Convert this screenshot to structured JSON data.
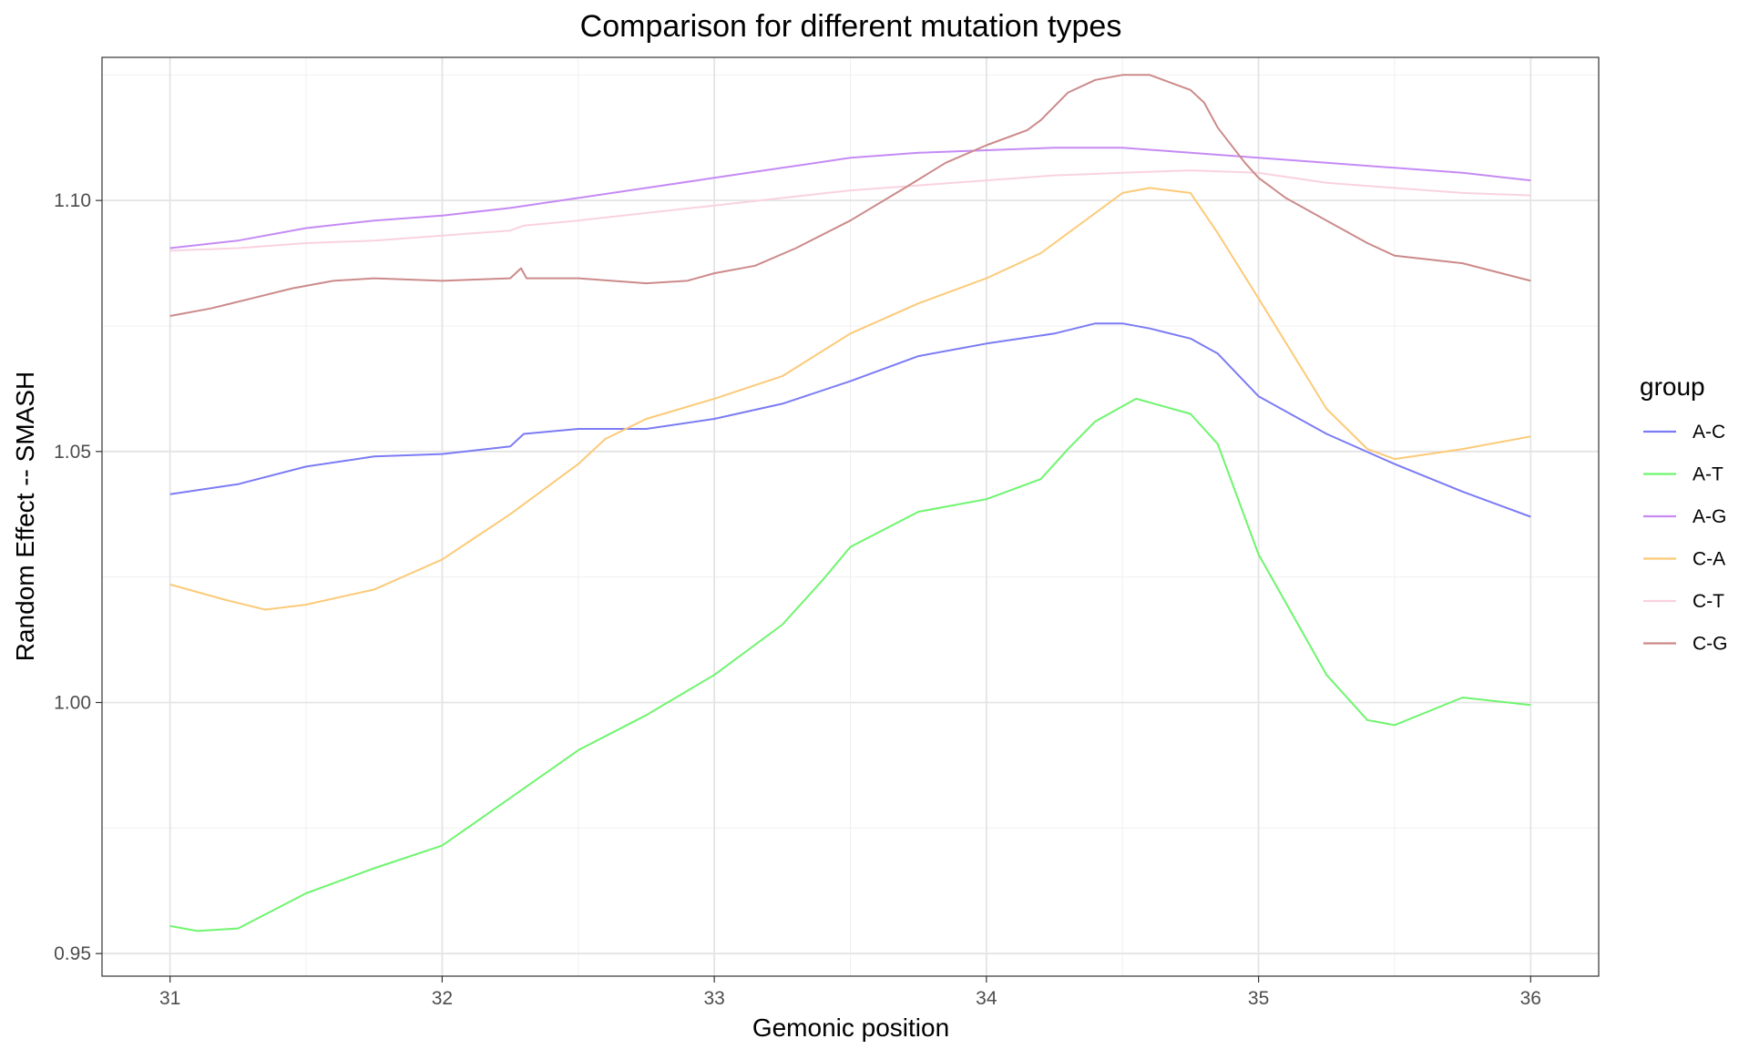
{
  "chart_data": {
    "type": "line",
    "title": "Comparison for different mutation types",
    "xlabel": "Gemonic position",
    "ylabel": "Random Effect -- SMASH",
    "xlim": [
      30.75,
      36.25
    ],
    "ylim": [
      0.9455,
      1.1285
    ],
    "x_ticks": [
      31,
      32,
      33,
      34,
      35,
      36
    ],
    "x_tick_labels": [
      "31",
      "32",
      "33",
      "34",
      "35",
      "36"
    ],
    "y_ticks": [
      0.95,
      1.0,
      1.05,
      1.1
    ],
    "y_tick_labels": [
      "0.95",
      "1.00",
      "1.05",
      "1.10"
    ],
    "grid": true,
    "legend": {
      "title": "group",
      "position": "right"
    },
    "series": [
      {
        "name": "A-C",
        "color": "#7b7bf5",
        "x": [
          31,
          31.25,
          31.5,
          31.75,
          32,
          32.25,
          32.3,
          32.5,
          32.75,
          33,
          33.25,
          33.5,
          33.75,
          34,
          34.25,
          34.4,
          34.5,
          34.6,
          34.75,
          34.85,
          35,
          35.25,
          35.5,
          35.75,
          36
        ],
        "values": [
          1.0415,
          1.0435,
          1.047,
          1.049,
          1.0495,
          1.051,
          1.0535,
          1.0545,
          1.0545,
          1.0565,
          1.0595,
          1.064,
          1.069,
          1.0715,
          1.0735,
          1.0755,
          1.0755,
          1.0745,
          1.0725,
          1.0695,
          1.061,
          1.0535,
          1.0475,
          1.042,
          1.037
        ]
      },
      {
        "name": "A-T",
        "color": "#6ef56e",
        "x": [
          31,
          31.1,
          31.25,
          31.5,
          31.75,
          32,
          32.25,
          32.5,
          32.75,
          33,
          33.25,
          33.4,
          33.5,
          33.75,
          34,
          34.2,
          34.3,
          34.4,
          34.55,
          34.75,
          34.85,
          35,
          35.25,
          35.4,
          35.5,
          35.75,
          36
        ],
        "values": [
          0.9555,
          0.9545,
          0.955,
          0.962,
          0.967,
          0.9715,
          0.981,
          0.9905,
          0.9975,
          1.0055,
          1.0155,
          1.0245,
          1.031,
          1.038,
          1.0405,
          1.0445,
          1.0505,
          1.056,
          1.0605,
          1.0575,
          1.0515,
          1.0295,
          1.0055,
          0.9965,
          0.9955,
          1.001,
          0.9995
        ]
      },
      {
        "name": "A-G",
        "color": "#c58af5",
        "x": [
          31,
          31.25,
          31.5,
          31.75,
          32,
          32.25,
          32.5,
          32.75,
          33,
          33.25,
          33.5,
          33.75,
          34,
          34.25,
          34.5,
          34.75,
          35,
          35.25,
          35.5,
          35.75,
          36
        ],
        "values": [
          1.0905,
          1.092,
          1.0945,
          1.096,
          1.097,
          1.0985,
          1.1005,
          1.1025,
          1.1045,
          1.1065,
          1.1085,
          1.1095,
          1.11,
          1.1105,
          1.1105,
          1.1095,
          1.1085,
          1.1075,
          1.1065,
          1.1055,
          1.104
        ]
      },
      {
        "name": "C-A",
        "color": "#fcca78",
        "x": [
          31,
          31.2,
          31.35,
          31.5,
          31.75,
          32,
          32.25,
          32.5,
          32.6,
          32.75,
          33,
          33.25,
          33.5,
          33.75,
          34,
          34.2,
          34.35,
          34.5,
          34.6,
          34.75,
          34.85,
          35,
          35.25,
          35.4,
          35.5,
          35.75,
          36
        ],
        "values": [
          1.0235,
          1.0205,
          1.0185,
          1.0195,
          1.0225,
          1.0285,
          1.0375,
          1.0475,
          1.0525,
          1.0565,
          1.0605,
          1.065,
          1.0735,
          1.0795,
          1.0845,
          1.0895,
          1.0955,
          1.1015,
          1.1025,
          1.1015,
          1.0935,
          1.0805,
          1.0585,
          1.0505,
          1.0485,
          1.0505,
          1.053
        ]
      },
      {
        "name": "C-T",
        "color": "#f9d2e2",
        "x": [
          31,
          31.25,
          31.5,
          31.75,
          32,
          32.25,
          32.3,
          32.5,
          32.75,
          33,
          33.25,
          33.5,
          33.75,
          34,
          34.25,
          34.5,
          34.75,
          35,
          35.25,
          35.5,
          35.75,
          36
        ],
        "values": [
          1.09,
          1.0905,
          1.0915,
          1.092,
          1.093,
          1.094,
          1.095,
          1.096,
          1.0975,
          1.099,
          1.1005,
          1.102,
          1.103,
          1.104,
          1.105,
          1.1055,
          1.106,
          1.1055,
          1.1035,
          1.1025,
          1.1015,
          1.101
        ]
      },
      {
        "name": "C-G",
        "color": "#cc8a8a",
        "x": [
          31,
          31.15,
          31.3,
          31.45,
          31.6,
          31.75,
          32,
          32.25,
          32.29,
          32.31,
          32.5,
          32.75,
          32.9,
          33,
          33.15,
          33.3,
          33.5,
          33.7,
          33.85,
          34,
          34.15,
          34.2,
          34.3,
          34.4,
          34.5,
          34.6,
          34.65,
          34.75,
          34.8,
          34.85,
          34.95,
          35,
          35.1,
          35.25,
          35.4,
          35.5,
          35.75,
          36
        ],
        "values": [
          1.077,
          1.0785,
          1.0805,
          1.0825,
          1.084,
          1.0845,
          1.084,
          1.0845,
          1.0865,
          1.0845,
          1.0845,
          1.0835,
          1.084,
          1.0855,
          1.087,
          1.0905,
          1.096,
          1.1025,
          1.1075,
          1.111,
          1.114,
          1.116,
          1.1215,
          1.124,
          1.125,
          1.125,
          1.124,
          1.122,
          1.1195,
          1.1145,
          1.1075,
          1.1045,
          1.1005,
          1.096,
          1.0915,
          1.089,
          1.0875,
          1.084
        ]
      }
    ]
  }
}
